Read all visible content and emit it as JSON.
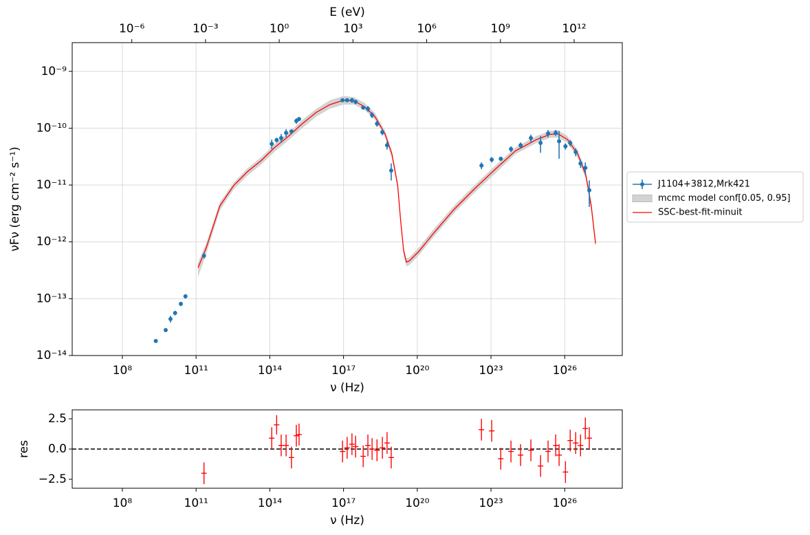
{
  "chart_data": [
    {
      "type": "sed",
      "x_label": "ν  (Hz)",
      "y_label": "νFν  (erg cm⁻²  s⁻¹)",
      "x2_label": "E (eV)",
      "xscale": "log",
      "yscale": "log",
      "grid": true,
      "legend": "outside right",
      "xlim": [
        910000.0,
        2.2e+28
      ],
      "ylim": [
        1e-14,
        3.2e-09
      ],
      "xticks": [
        {
          "value": 100000000.0,
          "label": "10⁸"
        },
        {
          "value": 100000000000.0,
          "label": "10¹¹"
        },
        {
          "value": 100000000000000.0,
          "label": "10¹⁴"
        },
        {
          "value": 1e+17,
          "label": "10¹⁷"
        },
        {
          "value": 1e+20,
          "label": "10²⁰"
        },
        {
          "value": 1e+23,
          "label": "10²³"
        },
        {
          "value": 1e+26,
          "label": "10²⁶"
        }
      ],
      "yticks": [
        {
          "value": 1e-14,
          "label": "10⁻¹⁴"
        },
        {
          "value": 1e-13,
          "label": "10⁻¹³"
        },
        {
          "value": 1e-12,
          "label": "10⁻¹²"
        },
        {
          "value": 1e-11,
          "label": "10⁻¹¹"
        },
        {
          "value": 1e-10,
          "label": "10⁻¹⁰"
        },
        {
          "value": 1e-09,
          "label": "10⁻⁹"
        }
      ],
      "x2lim": [
        3.76e-09,
        91000000000000.0
      ],
      "x2ticks": [
        {
          "value": 1e-06,
          "label": "10⁻⁶"
        },
        {
          "value": 0.001,
          "label": "10⁻³"
        },
        {
          "value": 1,
          "label": "10⁰"
        },
        {
          "value": 1000.0,
          "label": "10³"
        },
        {
          "value": 1000000.0,
          "label": "10⁶"
        },
        {
          "value": 1000000000.0,
          "label": "10⁹"
        },
        {
          "value": 1000000000000.0,
          "label": "10¹²"
        }
      ],
      "series": [
        {
          "name": "J1104+3812,Mrk421",
          "kind": "errorbar",
          "color": "#1f77b4",
          "x": [
            2300000000.0,
            5800000000.0,
            9100000000.0,
            14000000000.0,
            24000000000.0,
            37000000000.0,
            210000000000.0,
            120000000000000.0,
            190000000000000.0,
            290000000000000.0,
            460000000000000.0,
            760000000000000.0,
            1200000000000000.0,
            1550000000000000.0,
            9.1e+16,
            1.4e+17,
            2.2e+17,
            3.1e+17,
            6.3e+17,
            9.8e+17,
            1.45e+18,
            2.3e+18,
            3.8e+18,
            5.9e+18,
            8.7e+18,
            4.1e+22,
            1.07e+23,
            2.5e+23,
            6.5e+23,
            1.6e+24,
            4.2e+24,
            1.04e+25,
            2.1e+25,
            4.3e+25,
            5.9e+25,
            1.07e+26,
            1.67e+26,
            2.8e+26,
            4.4e+26,
            6.9e+26,
            1e+27
          ],
          "values": [
            1.8e-14,
            2.8e-14,
            4.4e-14,
            5.6e-14,
            8.1e-14,
            1.1e-13,
            5.7e-13,
            5.3e-11,
            6.2e-11,
            6.7e-11,
            8.3e-11,
            8.8e-11,
            1.34e-10,
            1.45e-10,
            3.1e-10,
            3.1e-10,
            3.1e-10,
            2.9e-10,
            2.3e-10,
            2.2e-10,
            1.7e-10,
            1.2e-10,
            8.5e-11,
            5e-11,
            1.8e-11,
            2.2e-11,
            2.8e-11,
            2.9e-11,
            4.3e-11,
            5e-11,
            6.7e-11,
            5.5e-11,
            8.1e-11,
            8.3e-11,
            5.9e-11,
            4.8e-11,
            5.5e-11,
            3.8e-11,
            2.4e-11,
            2e-11,
            8.1e-12
          ],
          "yerr": [
            1e-15,
            2e-15,
            6e-15,
            5e-15,
            7e-15,
            1e-14,
            6e-14,
            1e-11,
            6e-12,
            1.2e-11,
            1.3e-11,
            8e-12,
            1.5e-11,
            1.2e-11,
            2e-11,
            2e-11,
            3e-11,
            2.5e-11,
            1.5e-11,
            2.5e-11,
            2e-11,
            1.4e-11,
            1e-11,
            8e-12,
            6e-12,
            3e-12,
            3e-12,
            2.5e-12,
            5e-12,
            6e-12,
            1e-11,
            1.8e-11,
            1.2e-11,
            1e-11,
            3e-11,
            6e-12,
            7e-12,
            6e-12,
            4e-12,
            5e-12,
            4e-12
          ]
        },
        {
          "name": "mcmc model conf[0.05, 0.95]",
          "kind": "band",
          "color": "#d3d3d3",
          "x": [
            120000000000.0,
            260000000000.0,
            930000000000.0,
            3400000000000.0,
            12000000000000.0,
            45000000000000.0,
            160000000000000.0,
            590000000000000.0,
            2100000000000000.0,
            7800000000000000.0,
            2.8e+16,
            1e+17,
            2.7e+17,
            7.1e+17,
            1.9e+18,
            4.9e+18,
            9.3e+18,
            1.6e+19,
            2.1e+19,
            2.8e+19,
            3.6e+19,
            4.7e+19,
            1.2e+20,
            4.5e+20,
            3.1e+21,
            2.1e+22,
            1.5e+23,
            1e+24,
            7.1e+24,
            2.6e+25,
            5.5e+25,
            1.3e+26,
            3.4e+26,
            7.2e+26,
            1.2e+27,
            1.8e+27
          ],
          "lower": [
            2.4e-13,
            6.2e-13,
            3.6e-12,
            8.4e-12,
            1.45e-11,
            2.3e-11,
            3.9e-11,
            6.2e-11,
            1e-10,
            1.6e-10,
            2.2e-10,
            2.6e-10,
            2.6e-10,
            2.1e-10,
            1.4e-10,
            6.9e-11,
            3e-11,
            8.5e-12,
            2.1e-12,
            6e-13,
            3.7e-13,
            3.9e-13,
            5.9e-13,
            1.2e-12,
            3.2e-12,
            7.3e-12,
            1.6e-11,
            3.5e-11,
            5.5e-11,
            6.8e-11,
            6.8e-11,
            5.5e-11,
            3e-11,
            1.3e-11,
            3.6e-12,
            8e-13
          ],
          "upper": [
            4.3e-13,
            9.5e-13,
            5e-12,
            1.1e-11,
            1.95e-11,
            3.1e-11,
            5.3e-11,
            8.4e-11,
            1.4e-10,
            2.2e-10,
            3.1e-10,
            3.7e-10,
            3.5e-10,
            2.8e-10,
            1.85e-10,
            9e-11,
            4e-11,
            1.1e-11,
            2.8e-12,
            8e-13,
            5.1e-13,
            5.3e-13,
            8.1e-13,
            1.65e-12,
            4.3e-12,
            9.9e-12,
            2.2e-11,
            4.6e-11,
            7.3e-11,
            9e-11,
            9.2e-11,
            7.3e-11,
            4.1e-11,
            1.8e-11,
            5.1e-12,
            1.1e-12
          ]
        },
        {
          "name": "SSC-best-fit-minuit",
          "kind": "line",
          "color": "#ff0000",
          "x": [
            120000000000.0,
            260000000000.0,
            930000000000.0,
            3400000000000.0,
            12000000000000.0,
            45000000000000.0,
            160000000000000.0,
            590000000000000.0,
            2100000000000000.0,
            7800000000000000.0,
            2.8e+16,
            1e+17,
            2.7e+17,
            7.1e+17,
            1.9e+18,
            4.9e+18,
            9.3e+18,
            1.6e+19,
            2.1e+19,
            2.8e+19,
            3.6e+19,
            4.7e+19,
            1.2e+20,
            4.5e+20,
            3.1e+21,
            2.1e+22,
            1.5e+23,
            1e+24,
            7.1e+24,
            2.6e+25,
            5.5e+25,
            1.3e+26,
            3.4e+26,
            7.2e+26,
            1.2e+27,
            1.8e+27
          ],
          "values": [
            3.5e-13,
            7.9e-13,
            4.3e-12,
            9.8e-12,
            1.7e-11,
            2.7e-11,
            4.6e-11,
            7.3e-11,
            1.2e-10,
            1.9e-10,
            2.6e-10,
            3.1e-10,
            3e-10,
            2.4e-10,
            1.6e-10,
            7.9e-11,
            3.5e-11,
            9.8e-12,
            2.4e-12,
            6.9e-13,
            4.4e-13,
            4.6e-13,
            6.9e-13,
            1.4e-12,
            3.7e-12,
            8.5e-12,
            1.9e-11,
            4e-11,
            6.3e-11,
            7.8e-11,
            7.9e-11,
            6.3e-11,
            3.5e-11,
            1.5e-11,
            4.3e-12,
            9.3e-13
          ]
        }
      ]
    },
    {
      "type": "residual",
      "x_label": "ν  (Hz)",
      "y_label": "res",
      "xscale": "log",
      "xlim": [
        910000.0,
        2.2e+28
      ],
      "ylim": [
        -3.24,
        3.24
      ],
      "xticks": [
        {
          "value": 100000000.0,
          "label": "10⁸"
        },
        {
          "value": 100000000000.0,
          "label": "10¹¹"
        },
        {
          "value": 100000000000000.0,
          "label": "10¹⁴"
        },
        {
          "value": 1e+17,
          "label": "10¹⁷"
        },
        {
          "value": 1e+20,
          "label": "10²⁰"
        },
        {
          "value": 1e+23,
          "label": "10²³"
        },
        {
          "value": 1e+26,
          "label": "10²⁶"
        }
      ],
      "yticks": [
        2.5,
        {
          "value": 0,
          "label": "0.0"
        },
        {
          "value": -2.5,
          "label": "−2.5"
        }
      ],
      "hline": 0,
      "series": [
        {
          "color": "#ff0000",
          "x": [
            210000000000.0,
            120000000000000.0,
            190000000000000.0,
            290000000000000.0,
            460000000000000.0,
            760000000000000.0,
            1200000000000000.0,
            1550000000000000.0,
            9.1e+16,
            1.4e+17,
            2.2e+17,
            3.1e+17,
            6.3e+17,
            9.8e+17,
            1.45e+18,
            2.3e+18,
            3.8e+18,
            5.9e+18,
            8.7e+18,
            4.1e+22,
            1.07e+23,
            2.5e+23,
            6.5e+23,
            1.6e+24,
            4.2e+24,
            1.04e+25,
            2.1e+25,
            4.3e+25,
            5.9e+25,
            1.07e+26,
            1.67e+26,
            2.8e+26,
            4.4e+26,
            6.9e+26,
            1e+27
          ],
          "values": [
            -2.0,
            0.9,
            2.0,
            0.3,
            0.3,
            -0.7,
            1.1,
            1.2,
            -0.2,
            0.1,
            0.4,
            0.2,
            -0.6,
            0.3,
            0.0,
            -0.1,
            0.1,
            0.5,
            -0.7,
            1.6,
            1.5,
            -0.8,
            -0.2,
            -0.5,
            -0.1,
            -1.4,
            -0.2,
            0.3,
            -0.5,
            -1.9,
            0.7,
            0.5,
            0.3,
            1.7,
            0.9
          ],
          "yerr": [
            0.9,
            0.9,
            0.8,
            0.9,
            0.9,
            0.9,
            0.9,
            0.9,
            0.9,
            0.9,
            0.9,
            0.9,
            0.9,
            0.9,
            0.9,
            0.9,
            0.9,
            0.9,
            0.9,
            0.9,
            0.9,
            0.9,
            0.9,
            0.9,
            0.9,
            0.9,
            0.9,
            0.9,
            0.9,
            0.9,
            0.9,
            0.9,
            0.9,
            0.9,
            0.9
          ]
        }
      ]
    }
  ]
}
